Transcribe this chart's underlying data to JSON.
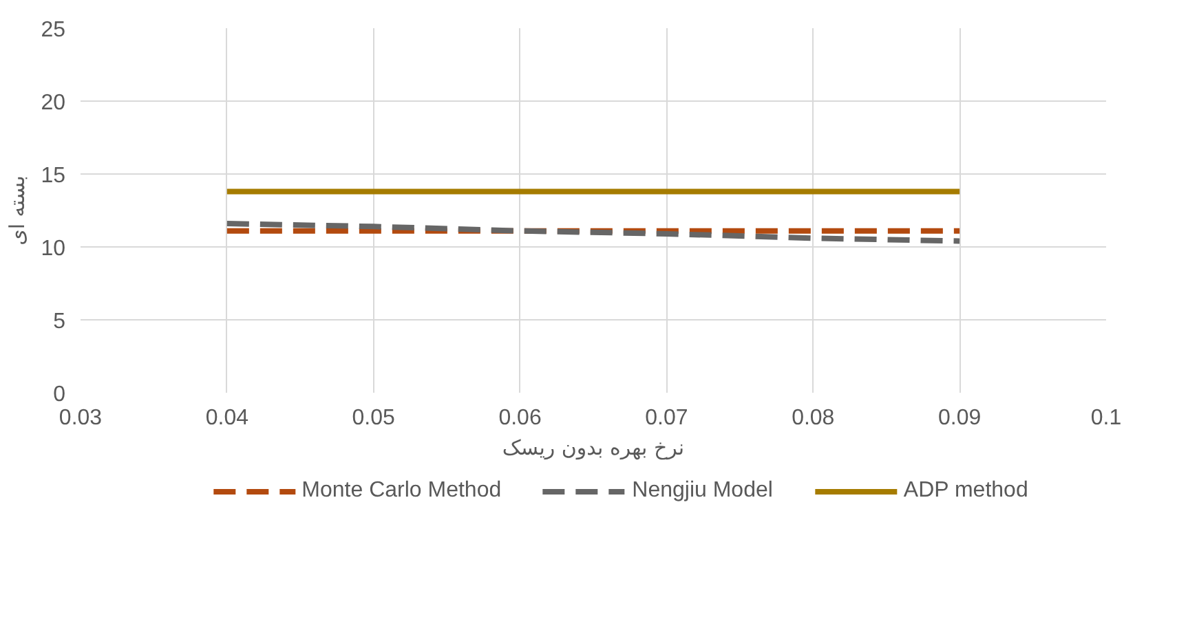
{
  "chart_data": {
    "type": "line",
    "xlabel": "نرخ بهره بدون ریسک",
    "ylabel": "بسته ای",
    "x": [
      0.04,
      0.05,
      0.06,
      0.07,
      0.08,
      0.09
    ],
    "series": [
      {
        "name": "Monte Carlo Method",
        "color": "#b34a0f",
        "values": [
          11.1,
          11.1,
          11.1,
          11.1,
          11.1,
          11.1
        ],
        "line_style": "dashed"
      },
      {
        "name": "Nengjiu Model",
        "color": "#666666",
        "values": [
          11.6,
          11.4,
          11.1,
          10.9,
          10.6,
          10.4
        ],
        "line_style": "dashed"
      },
      {
        "name": "ADP method",
        "color": "#a67c00",
        "values": [
          13.8,
          13.8,
          13.8,
          13.8,
          13.8,
          13.8
        ],
        "line_style": "solid"
      }
    ],
    "xlim": [
      0.03,
      0.1
    ],
    "xticks": [
      {
        "value": 0.03,
        "label": "0.03"
      },
      {
        "value": 0.04,
        "label": "0.04"
      },
      {
        "value": 0.05,
        "label": "0.05"
      },
      {
        "value": 0.06,
        "label": "0.06"
      },
      {
        "value": 0.07,
        "label": "0.07"
      },
      {
        "value": 0.08,
        "label": "0.08"
      },
      {
        "value": 0.09,
        "label": "0.09"
      },
      {
        "value": 0.1,
        "label": "0.1"
      }
    ],
    "ylim": [
      0,
      25
    ],
    "yticks": [
      0,
      5,
      10,
      15,
      20,
      25
    ],
    "grid": true,
    "legend": "bottom",
    "marker": "none"
  }
}
